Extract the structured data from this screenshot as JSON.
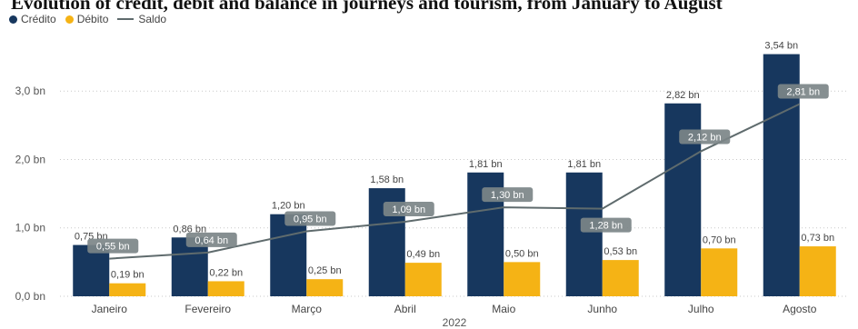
{
  "chart_data": {
    "type": "bar",
    "title": "Evolution of credit, debit and balance in journeys and tourism, from January to August",
    "xlabel": "2022",
    "ylabel": "",
    "categories": [
      "Janeiro",
      "Fevereiro",
      "Março",
      "Abril",
      "Maio",
      "Junho",
      "Julho",
      "Agosto"
    ],
    "series": [
      {
        "name": "Crédito",
        "kind": "bar",
        "color": "#17375e",
        "values": [
          0.75,
          0.86,
          1.2,
          1.58,
          1.81,
          1.81,
          2.82,
          3.54
        ],
        "labels": [
          "0,75 bn",
          "0,86 bn",
          "1,20 bn",
          "1,58 bn",
          "1,81 bn",
          "1,81 bn",
          "2,82 bn",
          "3,54 bn"
        ]
      },
      {
        "name": "Débito",
        "kind": "bar",
        "color": "#f5b315",
        "values": [
          0.19,
          0.22,
          0.25,
          0.49,
          0.5,
          0.53,
          0.7,
          0.73
        ],
        "labels": [
          "0,19 bn",
          "0,22 bn",
          "0,25 bn",
          "0,49 bn",
          "0,50 bn",
          "0,53 bn",
          "0,70 bn",
          "0,73 bn"
        ]
      },
      {
        "name": "Saldo",
        "kind": "line",
        "color": "#5f6b6d",
        "values": [
          0.55,
          0.64,
          0.95,
          1.09,
          1.3,
          1.28,
          2.12,
          2.81
        ],
        "labels": [
          "0,55 bn",
          "0,64 bn",
          "0,95 bn",
          "1,09 bn",
          "1,30 bn",
          "1,28 bn",
          "2,12 bn",
          "2,81 bn"
        ]
      }
    ],
    "ylim": [
      0,
      3.8
    ],
    "yticks": [
      0,
      1,
      2,
      3
    ],
    "ytick_labels": [
      "0,0 bn",
      "1,0 bn",
      "2,0 bn",
      "3,0 bn"
    ],
    "grid": true,
    "legend_position": "top-left"
  }
}
